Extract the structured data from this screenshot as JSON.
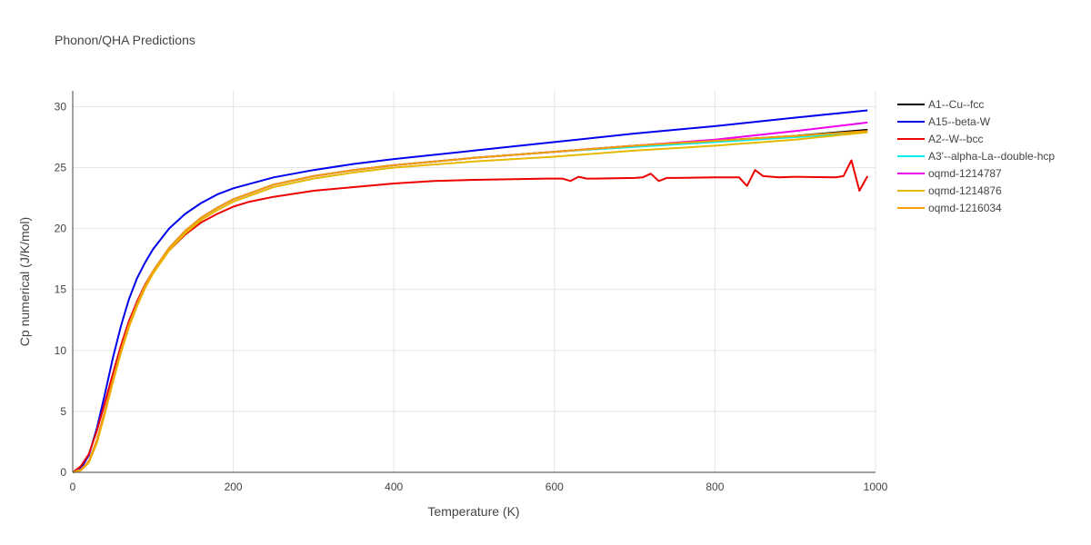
{
  "chart_data": {
    "type": "line",
    "title": "Phonon/QHA Predictions",
    "xlabel": "Temperature (K)",
    "ylabel": "Cp numerical (J/K/mol)",
    "xlim": [
      0,
      1000
    ],
    "ylim": [
      0,
      31.3
    ],
    "xticks": [
      0,
      200,
      400,
      600,
      800,
      1000
    ],
    "yticks": [
      0,
      5,
      10,
      15,
      20,
      25,
      30
    ],
    "grid": true,
    "legend_position": "right",
    "series": [
      {
        "name": "A1--Cu--fcc",
        "color": "#000000",
        "x": [
          0,
          10,
          20,
          30,
          40,
          50,
          60,
          70,
          80,
          90,
          100,
          120,
          140,
          160,
          180,
          200,
          250,
          300,
          350,
          400,
          500,
          600,
          700,
          800,
          900,
          990
        ],
        "y": [
          0,
          0.2,
          0.9,
          2.6,
          5.0,
          7.6,
          10.0,
          12.1,
          13.8,
          15.3,
          16.5,
          18.4,
          19.8,
          20.9,
          21.7,
          22.4,
          23.6,
          24.3,
          24.8,
          25.2,
          25.8,
          26.3,
          26.8,
          27.2,
          27.6,
          28.1
        ]
      },
      {
        "name": "A15--beta-W",
        "color": "#0000ee",
        "x": [
          0,
          10,
          20,
          30,
          40,
          50,
          60,
          70,
          80,
          90,
          100,
          120,
          140,
          160,
          180,
          200,
          250,
          300,
          350,
          400,
          500,
          600,
          700,
          800,
          900,
          990
        ],
        "y": [
          0,
          0.3,
          1.4,
          3.6,
          6.4,
          9.4,
          12.0,
          14.2,
          15.9,
          17.2,
          18.3,
          20.0,
          21.2,
          22.1,
          22.8,
          23.3,
          24.2,
          24.8,
          25.3,
          25.7,
          26.4,
          27.1,
          27.8,
          28.4,
          29.1,
          29.7
        ]
      },
      {
        "name": "A2--W--bcc",
        "color": "#ee0000",
        "x": [
          0,
          10,
          20,
          30,
          40,
          50,
          60,
          70,
          80,
          90,
          100,
          120,
          140,
          160,
          180,
          200,
          220,
          250,
          300,
          350,
          400,
          450,
          500,
          550,
          590,
          610,
          620,
          630,
          640,
          650,
          700,
          710,
          720,
          730,
          740,
          750,
          800,
          830,
          840,
          850,
          860,
          880,
          900,
          950,
          960,
          970,
          980,
          990
        ],
        "y": [
          0,
          0.5,
          1.5,
          3.4,
          5.7,
          8.1,
          10.4,
          12.4,
          14.0,
          15.4,
          16.5,
          18.2,
          19.5,
          20.5,
          21.2,
          21.8,
          22.2,
          22.6,
          23.1,
          23.4,
          23.7,
          23.9,
          24.0,
          24.05,
          24.1,
          24.1,
          23.9,
          24.25,
          24.1,
          24.1,
          24.15,
          24.2,
          24.5,
          23.9,
          24.15,
          24.15,
          24.2,
          24.2,
          23.5,
          24.8,
          24.3,
          24.2,
          24.25,
          24.2,
          24.3,
          25.6,
          23.1,
          24.3
        ]
      },
      {
        "name": "A3'--alpha-La--double-hcp",
        "color": "#00eeee",
        "x": [
          0,
          10,
          20,
          30,
          40,
          50,
          60,
          70,
          80,
          90,
          100,
          120,
          140,
          160,
          180,
          200,
          250,
          300,
          350,
          400,
          500,
          600,
          700,
          800,
          900,
          990
        ],
        "y": [
          0,
          0.2,
          0.9,
          2.6,
          5.0,
          7.6,
          10.0,
          12.1,
          13.8,
          15.3,
          16.5,
          18.4,
          19.8,
          20.9,
          21.7,
          22.4,
          23.6,
          24.3,
          24.8,
          25.2,
          25.8,
          26.3,
          26.7,
          27.1,
          27.5,
          27.9
        ]
      },
      {
        "name": "oqmd-1214787",
        "color": "#ee00ee",
        "x": [
          0,
          10,
          20,
          30,
          40,
          50,
          60,
          70,
          80,
          90,
          100,
          120,
          140,
          160,
          180,
          200,
          250,
          300,
          350,
          400,
          500,
          600,
          700,
          800,
          900,
          990
        ],
        "y": [
          0,
          0.2,
          0.9,
          2.6,
          5.0,
          7.6,
          10.0,
          12.1,
          13.8,
          15.3,
          16.5,
          18.4,
          19.8,
          20.9,
          21.7,
          22.4,
          23.6,
          24.3,
          24.8,
          25.2,
          25.8,
          26.3,
          26.8,
          27.3,
          28.0,
          28.7
        ]
      },
      {
        "name": "oqmd-1214876",
        "color": "#e6b800",
        "x": [
          0,
          10,
          20,
          30,
          40,
          50,
          60,
          70,
          80,
          90,
          100,
          120,
          140,
          160,
          180,
          200,
          250,
          300,
          350,
          400,
          500,
          600,
          700,
          800,
          900,
          990
        ],
        "y": [
          0,
          0.15,
          0.8,
          2.4,
          4.8,
          7.4,
          9.8,
          11.9,
          13.6,
          15.1,
          16.3,
          18.2,
          19.6,
          20.7,
          21.5,
          22.2,
          23.4,
          24.1,
          24.6,
          25.0,
          25.5,
          25.9,
          26.4,
          26.8,
          27.3,
          27.9
        ]
      },
      {
        "name": "oqmd-1216034",
        "color": "#f5a000",
        "x": [
          0,
          10,
          20,
          30,
          40,
          50,
          60,
          70,
          80,
          90,
          100,
          120,
          140,
          160,
          180,
          200,
          250,
          300,
          350,
          400,
          500,
          600,
          700,
          800,
          900,
          990
        ],
        "y": [
          0,
          0.2,
          0.9,
          2.6,
          5.0,
          7.6,
          10.0,
          12.1,
          13.8,
          15.3,
          16.5,
          18.4,
          19.8,
          20.9,
          21.7,
          22.4,
          23.6,
          24.3,
          24.8,
          25.2,
          25.8,
          26.3,
          26.8,
          27.2,
          27.6,
          28.0
        ]
      }
    ]
  }
}
